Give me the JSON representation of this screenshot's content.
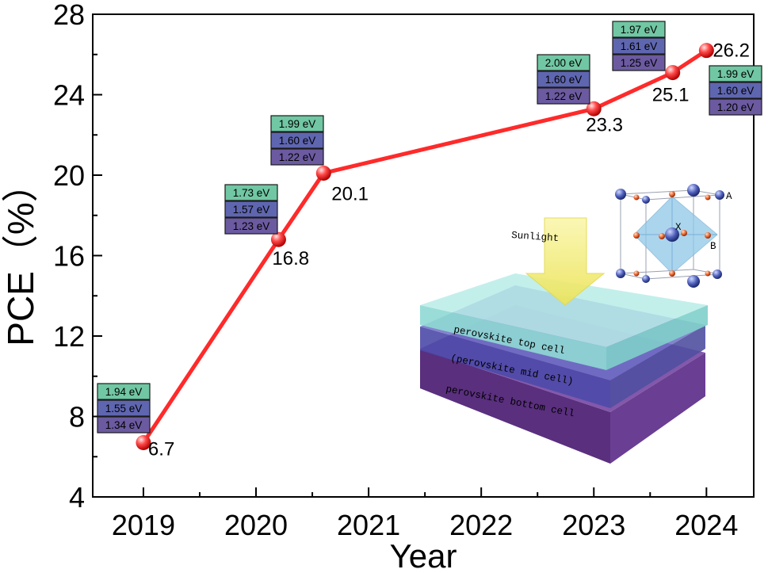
{
  "chart_data": {
    "type": "line",
    "title": "",
    "xlabel": "Year",
    "ylabel": "PCE（%）",
    "xlim": [
      2018.55,
      2024.42
    ],
    "ylim": [
      4,
      28
    ],
    "xticks": [
      2019,
      2020,
      2021,
      2022,
      2023,
      2024
    ],
    "yticks": [
      4,
      8,
      12,
      16,
      20,
      24,
      28
    ],
    "grid": false,
    "line_color": "#ff2a2a",
    "series": [
      {
        "x": [
          2019.0,
          2020.2,
          2020.6,
          2023.0,
          2023.7,
          2024.0
        ],
        "values": [
          6.7,
          16.8,
          20.1,
          23.3,
          25.1,
          26.2
        ],
        "labels": [
          "6.7",
          "16.8",
          "20.1",
          "23.3",
          "25.1",
          "26.2"
        ]
      }
    ],
    "bandgap_annotations": [
      [
        "1.94 eV",
        "1.55 eV",
        "1.34 eV"
      ],
      [
        "1.73 eV",
        "1.57 eV",
        "1.23 eV"
      ],
      [
        "1.99 eV",
        "1.60 eV",
        "1.22 eV"
      ],
      [
        "2.00 eV",
        "1.60 eV",
        "1.22 eV"
      ],
      [
        "1.97 eV",
        "1.61 eV",
        "1.25 eV"
      ],
      [
        "1.99 eV",
        "1.60 eV",
        "1.20 eV"
      ]
    ],
    "bandgap_colors": [
      "#71c7a3",
      "#5f66b0",
      "#6b5aa0"
    ]
  },
  "inset": {
    "sunlight_label": "Sunlight",
    "layers": [
      "perovskite top cell",
      "(perovskite mid cell)",
      "perovskite bottom cell"
    ],
    "crystal_labels": [
      "A",
      "X",
      "B"
    ],
    "layer_colors": [
      "#7fd3cf",
      "#6d6fc6",
      "#7b4fa6"
    ],
    "arrow_color": "#f2ee7a"
  }
}
